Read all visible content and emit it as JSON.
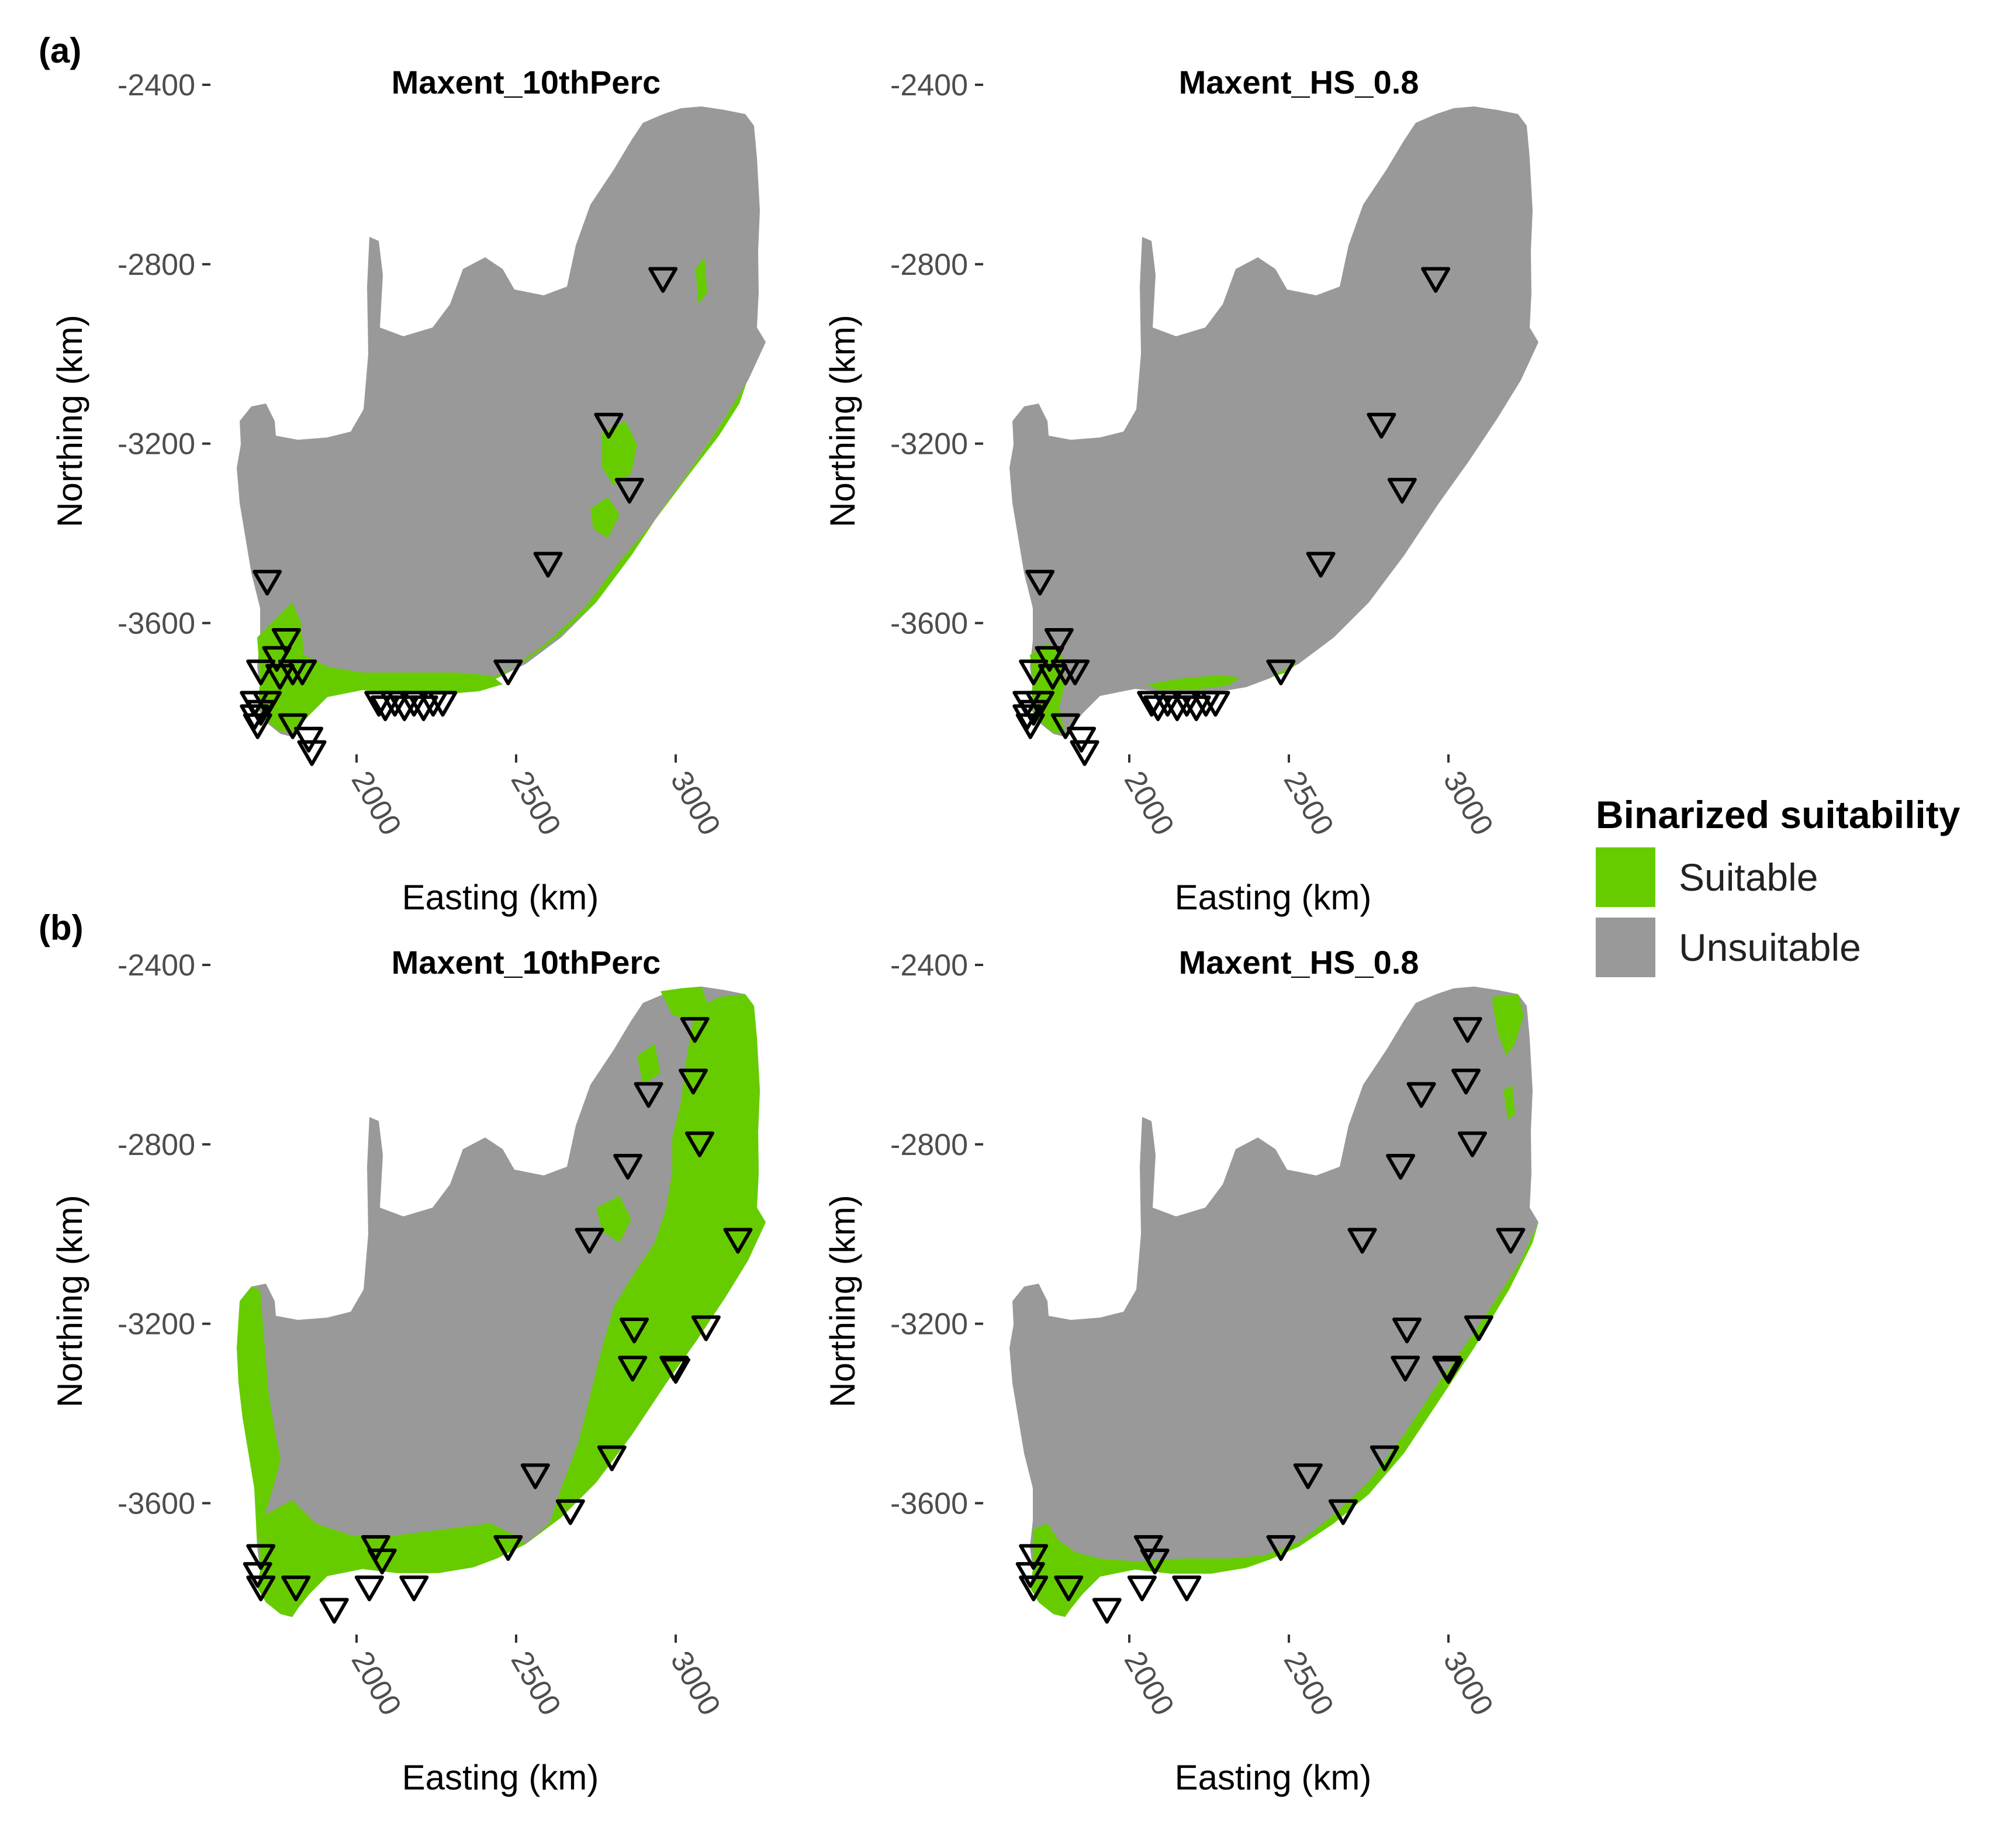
{
  "panels": [
    {
      "label": "(a)"
    },
    {
      "label": "(b)"
    }
  ],
  "legend": {
    "title": "Binarized suitability",
    "items": [
      {
        "label": "Suitable",
        "color": "#66cc00"
      },
      {
        "label": "Unsuitable",
        "color": "#999999"
      }
    ]
  },
  "map_common": {
    "xlabel": "Easting (km)",
    "ylabel": "Northing (km)",
    "x_ticks": [
      2000,
      2500,
      3000
    ],
    "y_ticks": [
      -2400,
      -2800,
      -3200,
      -3600
    ],
    "land_color": "#999999",
    "suitable_color": "#66cc00",
    "marker": "inverted-triangle-outline"
  },
  "chart_data": [
    {
      "type": "map",
      "panel": "(a)",
      "title": "Maxent_10thPerc",
      "suitable_regions": [
        "south-western cape",
        "southern coast",
        "eastern coastal belt"
      ],
      "points": [
        [
          2960,
          -2835
        ],
        [
          2790,
          -3160
        ],
        [
          2855,
          -3305
        ],
        [
          2600,
          -3470
        ],
        [
          2475,
          -3710
        ],
        [
          1720,
          -3510
        ],
        [
          1780,
          -3640
        ],
        [
          1750,
          -3680
        ],
        [
          1700,
          -3710
        ],
        [
          1760,
          -3720
        ],
        [
          1800,
          -3710
        ],
        [
          1830,
          -3710
        ],
        [
          1680,
          -3780
        ],
        [
          1700,
          -3800
        ],
        [
          1720,
          -3780
        ],
        [
          1680,
          -3810
        ],
        [
          1690,
          -3830
        ],
        [
          1800,
          -3830
        ],
        [
          1850,
          -3860
        ],
        [
          1860,
          -3890
        ],
        [
          2070,
          -3780
        ],
        [
          2090,
          -3790
        ],
        [
          2120,
          -3780
        ],
        [
          2150,
          -3790
        ],
        [
          2180,
          -3780
        ],
        [
          2210,
          -3790
        ],
        [
          2240,
          -3780
        ],
        [
          2270,
          -3780
        ]
      ]
    },
    {
      "type": "map",
      "panel": "(a)",
      "title": "Maxent_HS_0.8",
      "suitable_regions": [
        "south-western cape tip",
        "small southern coast patch"
      ],
      "points": [
        [
          2960,
          -2835
        ],
        [
          2790,
          -3160
        ],
        [
          2855,
          -3305
        ],
        [
          2600,
          -3470
        ],
        [
          2475,
          -3710
        ],
        [
          1720,
          -3510
        ],
        [
          1780,
          -3640
        ],
        [
          1750,
          -3680
        ],
        [
          1700,
          -3710
        ],
        [
          1760,
          -3720
        ],
        [
          1800,
          -3710
        ],
        [
          1830,
          -3710
        ],
        [
          1680,
          -3780
        ],
        [
          1700,
          -3800
        ],
        [
          1720,
          -3780
        ],
        [
          1680,
          -3810
        ],
        [
          1690,
          -3830
        ],
        [
          1800,
          -3830
        ],
        [
          1850,
          -3860
        ],
        [
          1860,
          -3890
        ],
        [
          2070,
          -3780
        ],
        [
          2090,
          -3790
        ],
        [
          2120,
          -3780
        ],
        [
          2150,
          -3790
        ],
        [
          2180,
          -3780
        ],
        [
          2210,
          -3790
        ],
        [
          2240,
          -3780
        ],
        [
          2270,
          -3780
        ]
      ]
    },
    {
      "type": "map",
      "panel": "(b)",
      "title": "Maxent_10thPerc",
      "suitable_regions": [
        "western coast",
        "southern coast",
        "broad eastern region"
      ],
      "points": [
        [
          3060,
          -2545
        ],
        [
          3055,
          -2660
        ],
        [
          2915,
          -2690
        ],
        [
          3075,
          -2800
        ],
        [
          2850,
          -2850
        ],
        [
          2730,
          -3015
        ],
        [
          3195,
          -3015
        ],
        [
          2870,
          -3215
        ],
        [
          3095,
          -3210
        ],
        [
          2865,
          -3300
        ],
        [
          2995,
          -3300
        ],
        [
          3000,
          -3305
        ],
        [
          2800,
          -3500
        ],
        [
          2560,
          -3540
        ],
        [
          2670,
          -3620
        ],
        [
          2475,
          -3700
        ],
        [
          2060,
          -3700
        ],
        [
          2080,
          -3730
        ],
        [
          1700,
          -3720
        ],
        [
          1690,
          -3760
        ],
        [
          1700,
          -3790
        ],
        [
          1810,
          -3790
        ],
        [
          1930,
          -3840
        ],
        [
          2040,
          -3790
        ],
        [
          2180,
          -3790
        ]
      ]
    },
    {
      "type": "map",
      "panel": "(b)",
      "title": "Maxent_HS_0.8",
      "suitable_regions": [
        "south-western cape",
        "southern coast strip",
        "eastern coastal strip",
        "north-eastern patch"
      ],
      "points": [
        [
          3060,
          -2545
        ],
        [
          3055,
          -2660
        ],
        [
          2915,
          -2690
        ],
        [
          3075,
          -2800
        ],
        [
          2850,
          -2850
        ],
        [
          2730,
          -3015
        ],
        [
          3195,
          -3015
        ],
        [
          2870,
          -3215
        ],
        [
          3095,
          -3210
        ],
        [
          2865,
          -3300
        ],
        [
          2995,
          -3300
        ],
        [
          3000,
          -3305
        ],
        [
          2800,
          -3500
        ],
        [
          2560,
          -3540
        ],
        [
          2670,
          -3620
        ],
        [
          2475,
          -3700
        ],
        [
          2060,
          -3700
        ],
        [
          2080,
          -3730
        ],
        [
          1700,
          -3720
        ],
        [
          1690,
          -3760
        ],
        [
          1700,
          -3790
        ],
        [
          1810,
          -3790
        ],
        [
          1930,
          -3840
        ],
        [
          2040,
          -3790
        ],
        [
          2180,
          -3790
        ]
      ]
    }
  ]
}
